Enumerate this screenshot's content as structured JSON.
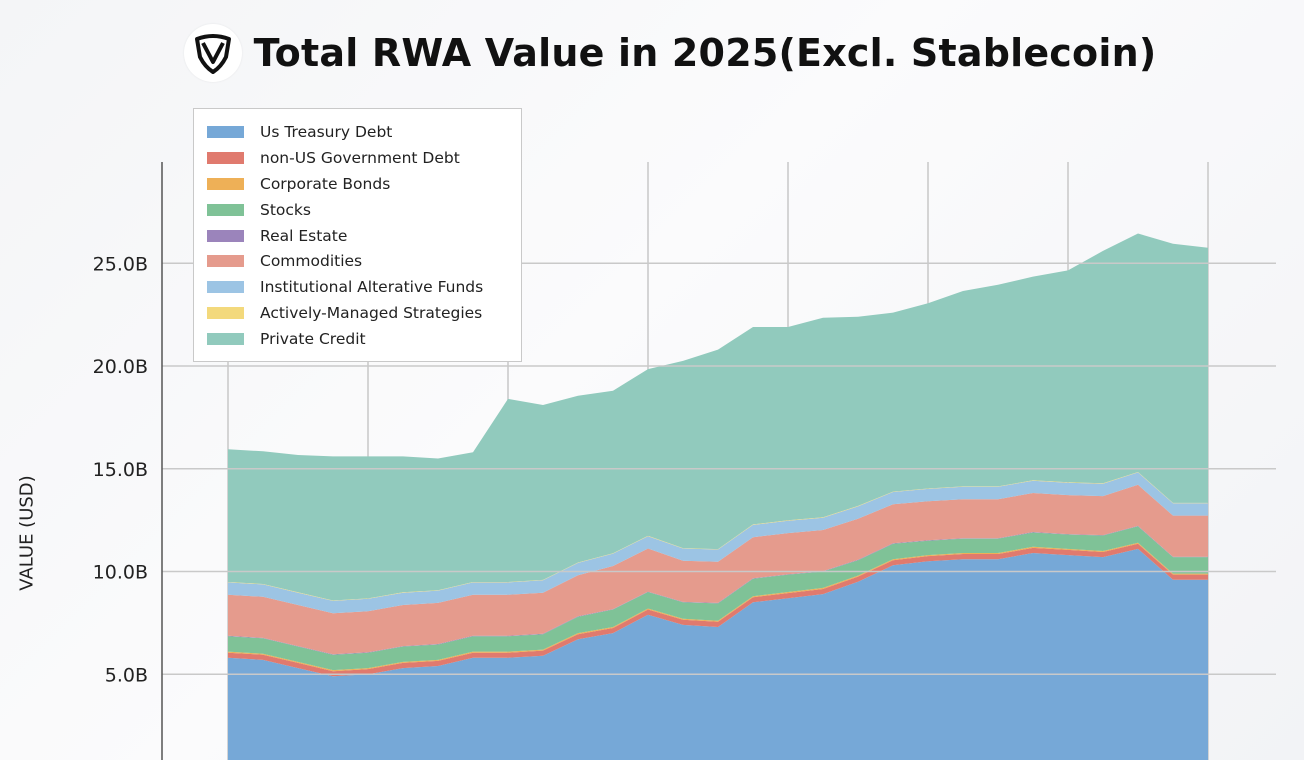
{
  "chart_data": {
    "type": "area",
    "stacked": true,
    "title": "Total RWA Value in 2025(Excl. Stablecoin)",
    "ylabel": "VALUE (USD)",
    "xlabel": "",
    "ylim": [
      0,
      28
    ],
    "y_ticks": [
      "5.0B",
      "10.0B",
      "15.0B",
      "20.0B",
      "25.0B"
    ],
    "y_tick_values": [
      5,
      10,
      15,
      20,
      25
    ],
    "grid": true,
    "legend_position": "top-left",
    "x_points": 29,
    "series": [
      {
        "name": "Us Treasury Debt",
        "color": "#76a8d7",
        "values": [
          5.8,
          5.7,
          5.3,
          4.9,
          5.0,
          5.3,
          5.4,
          5.8,
          5.8,
          5.9,
          6.7,
          7.0,
          7.9,
          7.4,
          7.3,
          8.5,
          8.7,
          8.9,
          9.5,
          10.3,
          10.5,
          10.6,
          10.6,
          10.9,
          10.8,
          10.7,
          11.1,
          9.6,
          9.6
        ]
      },
      {
        "name": "non-US Government Debt",
        "color": "#e07a6e",
        "values": [
          0.25,
          0.25,
          0.25,
          0.25,
          0.25,
          0.25,
          0.25,
          0.25,
          0.25,
          0.25,
          0.25,
          0.25,
          0.25,
          0.25,
          0.25,
          0.25,
          0.25,
          0.25,
          0.25,
          0.25,
          0.25,
          0.25,
          0.25,
          0.25,
          0.25,
          0.25,
          0.25,
          0.25,
          0.25
        ]
      },
      {
        "name": "Corporate Bonds",
        "color": "#eeb057",
        "values": [
          0.05,
          0.05,
          0.05,
          0.05,
          0.05,
          0.05,
          0.05,
          0.05,
          0.05,
          0.05,
          0.05,
          0.05,
          0.05,
          0.05,
          0.05,
          0.05,
          0.05,
          0.05,
          0.05,
          0.05,
          0.05,
          0.05,
          0.05,
          0.05,
          0.05,
          0.05,
          0.05,
          0.05,
          0.05
        ]
      },
      {
        "name": "Stocks",
        "color": "#7fc297",
        "values": [
          0.75,
          0.75,
          0.75,
          0.75,
          0.75,
          0.75,
          0.75,
          0.75,
          0.75,
          0.75,
          0.8,
          0.85,
          0.8,
          0.8,
          0.85,
          0.85,
          0.85,
          0.8,
          0.75,
          0.75,
          0.7,
          0.7,
          0.7,
          0.7,
          0.7,
          0.75,
          0.8,
          0.8,
          0.8
        ]
      },
      {
        "name": "Real Estate",
        "color": "#9b84bb",
        "values": [
          0.02,
          0.02,
          0.02,
          0.02,
          0.02,
          0.02,
          0.02,
          0.02,
          0.02,
          0.02,
          0.02,
          0.02,
          0.02,
          0.02,
          0.02,
          0.02,
          0.02,
          0.02,
          0.02,
          0.02,
          0.02,
          0.02,
          0.02,
          0.02,
          0.02,
          0.02,
          0.02,
          0.02,
          0.02
        ]
      },
      {
        "name": "Commodities",
        "color": "#e59b8d",
        "values": [
          2.0,
          2.0,
          2.0,
          2.0,
          2.0,
          2.0,
          2.0,
          2.0,
          2.0,
          2.0,
          2.0,
          2.1,
          2.1,
          2.0,
          2.0,
          2.0,
          2.0,
          2.0,
          2.0,
          1.9,
          1.9,
          1.9,
          1.9,
          1.9,
          1.9,
          1.9,
          2.0,
          2.0,
          2.0
        ]
      },
      {
        "name": "Institutional Alterative Funds",
        "color": "#9cc4e4",
        "values": [
          0.6,
          0.6,
          0.6,
          0.6,
          0.6,
          0.6,
          0.6,
          0.6,
          0.6,
          0.6,
          0.6,
          0.6,
          0.6,
          0.6,
          0.6,
          0.6,
          0.6,
          0.6,
          0.6,
          0.6,
          0.6,
          0.6,
          0.6,
          0.6,
          0.6,
          0.6,
          0.6,
          0.6,
          0.6
        ]
      },
      {
        "name": "Actively-Managed Strategies",
        "color": "#f3d97c",
        "values": [
          0.02,
          0.02,
          0.02,
          0.02,
          0.02,
          0.02,
          0.02,
          0.02,
          0.02,
          0.02,
          0.02,
          0.02,
          0.02,
          0.02,
          0.02,
          0.02,
          0.02,
          0.02,
          0.02,
          0.02,
          0.02,
          0.02,
          0.02,
          0.02,
          0.02,
          0.02,
          0.02,
          0.02,
          0.02
        ]
      },
      {
        "name": "Private Credit",
        "color": "#91cabd",
        "values": [
          6.46,
          6.46,
          6.68,
          7.01,
          6.91,
          6.61,
          6.41,
          6.31,
          8.91,
          8.51,
          8.11,
          7.91,
          8.11,
          9.11,
          9.71,
          9.61,
          9.41,
          9.71,
          9.21,
          8.71,
          9.01,
          9.51,
          9.81,
          9.91,
          10.31,
          11.31,
          11.61,
          12.61,
          12.41
        ]
      }
    ]
  },
  "brand": {
    "logo_icon": "shield-v-logo-icon"
  }
}
